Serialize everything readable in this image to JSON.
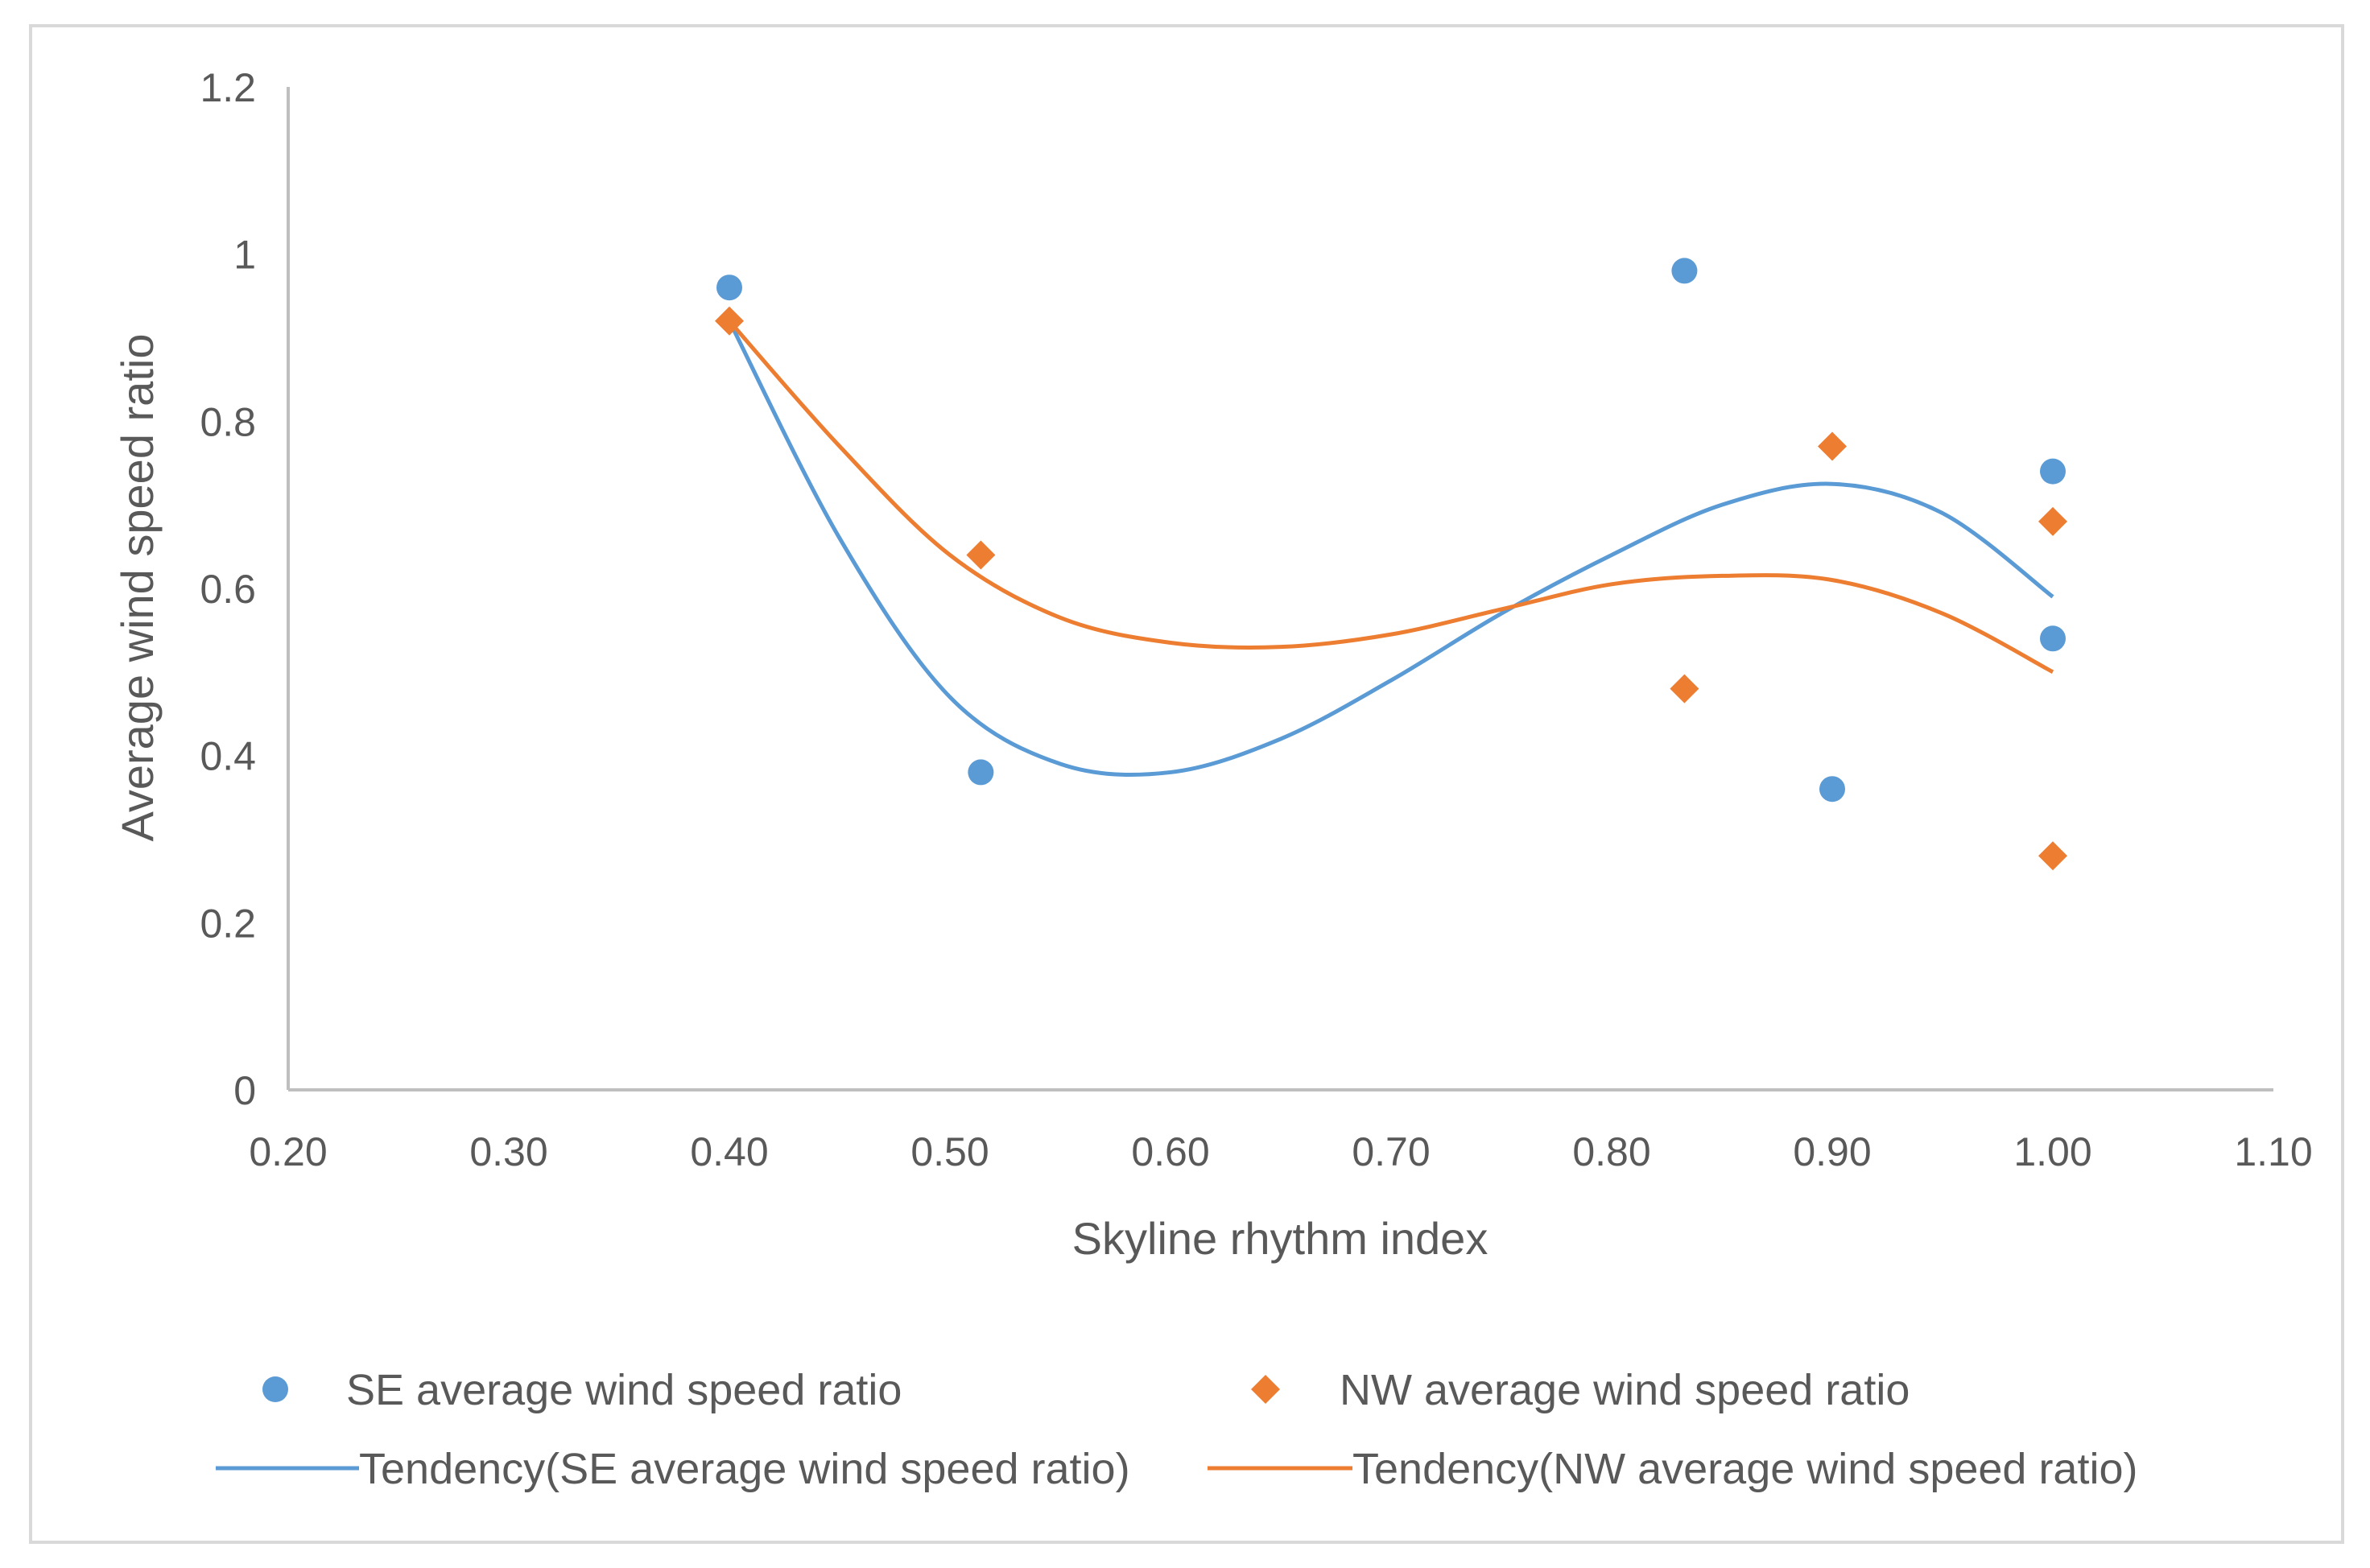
{
  "chart_data": {
    "type": "scatter",
    "title": "",
    "xlabel": "Skyline rhythm index",
    "ylabel": "Average wind speed ratio",
    "xlim": [
      0.2,
      1.1
    ],
    "ylim": [
      0,
      1.2
    ],
    "x_ticks": [
      "0.20",
      "0.30",
      "0.40",
      "0.50",
      "0.60",
      "0.70",
      "0.80",
      "0.90",
      "1.00",
      "1.10"
    ],
    "y_ticks": [
      "0",
      "0.2",
      "0.4",
      "0.6",
      "0.8",
      "1",
      "1.2"
    ],
    "x_tick_values": [
      0.2,
      0.3,
      0.4,
      0.5,
      0.6,
      0.7,
      0.8,
      0.9,
      1.0,
      1.1
    ],
    "y_tick_values": [
      0,
      0.2,
      0.4,
      0.6,
      0.8,
      1.0,
      1.2
    ],
    "grid": false,
    "legend_position": "bottom",
    "series": [
      {
        "name": "SE average wind speed ratio",
        "marker": "circle",
        "color": "#5b9bd5",
        "points": [
          {
            "x": 0.4,
            "y": 0.96
          },
          {
            "x": 0.514,
            "y": 0.38
          },
          {
            "x": 0.833,
            "y": 0.98
          },
          {
            "x": 0.9,
            "y": 0.36
          },
          {
            "x": 1.0,
            "y": 0.74
          },
          {
            "x": 1.0,
            "y": 0.54
          }
        ]
      },
      {
        "name": "NW average wind speed ratio",
        "marker": "diamond",
        "color": "#ed7d31",
        "points": [
          {
            "x": 0.4,
            "y": 0.92
          },
          {
            "x": 0.514,
            "y": 0.64
          },
          {
            "x": 0.833,
            "y": 0.48
          },
          {
            "x": 0.9,
            "y": 0.77
          },
          {
            "x": 1.0,
            "y": 0.68
          },
          {
            "x": 1.0,
            "y": 0.28
          }
        ]
      }
    ],
    "trendlines": [
      {
        "name": "Tendency(SE average wind speed ratio)",
        "color": "#5b9bd5",
        "points": [
          [
            0.4,
            0.92
          ],
          [
            0.45,
            0.66
          ],
          [
            0.5,
            0.47
          ],
          [
            0.55,
            0.39
          ],
          [
            0.6,
            0.38
          ],
          [
            0.65,
            0.42
          ],
          [
            0.7,
            0.49
          ],
          [
            0.75,
            0.57
          ],
          [
            0.8,
            0.64
          ],
          [
            0.85,
            0.7
          ],
          [
            0.9,
            0.725
          ],
          [
            0.95,
            0.69
          ],
          [
            1.0,
            0.59
          ]
        ]
      },
      {
        "name": "Tendency(NW average wind speed ratio)",
        "color": "#ed7d31",
        "points": [
          [
            0.4,
            0.92
          ],
          [
            0.45,
            0.77
          ],
          [
            0.5,
            0.64
          ],
          [
            0.55,
            0.565
          ],
          [
            0.6,
            0.535
          ],
          [
            0.65,
            0.53
          ],
          [
            0.7,
            0.545
          ],
          [
            0.75,
            0.575
          ],
          [
            0.8,
            0.605
          ],
          [
            0.85,
            0.615
          ],
          [
            0.9,
            0.61
          ],
          [
            0.95,
            0.57
          ],
          [
            1.0,
            0.5
          ]
        ]
      }
    ]
  }
}
